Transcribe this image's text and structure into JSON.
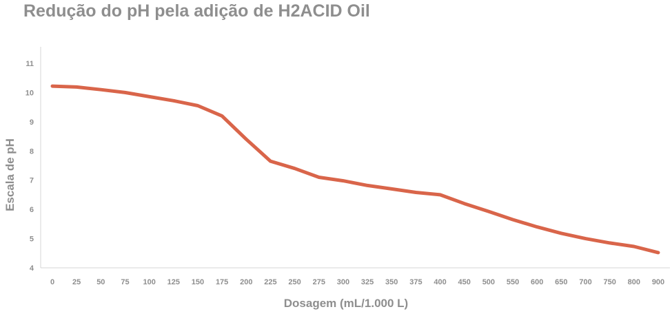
{
  "chart_data": {
    "type": "line",
    "title": "Redução do pH pela adição de H2ACID Oil",
    "xlabel": "Dosagem (mL/1.000 L)",
    "ylabel": "Escala de pH",
    "ylim": [
      4,
      11
    ],
    "yticks": [
      "4",
      "5",
      "6",
      "7",
      "8",
      "9",
      "10",
      "11"
    ],
    "categories": [
      "0",
      "25",
      "50",
      "75",
      "100",
      "125",
      "150",
      "175",
      "200",
      "225",
      "250",
      "275",
      "300",
      "325",
      "350",
      "375",
      "400",
      "450",
      "500",
      "550",
      "600",
      "650",
      "700",
      "750",
      "800",
      "900"
    ],
    "series": [
      {
        "values": [
          10.22,
          10.19,
          10.1,
          10.0,
          9.86,
          9.72,
          9.55,
          9.2,
          8.4,
          7.65,
          7.4,
          7.1,
          6.98,
          6.82,
          6.7,
          6.58,
          6.5,
          6.2,
          5.93,
          5.65,
          5.4,
          5.18,
          5.0,
          4.85,
          4.73,
          4.52
        ],
        "color": "#d9654a"
      }
    ],
    "grid": false,
    "legend": "none"
  }
}
